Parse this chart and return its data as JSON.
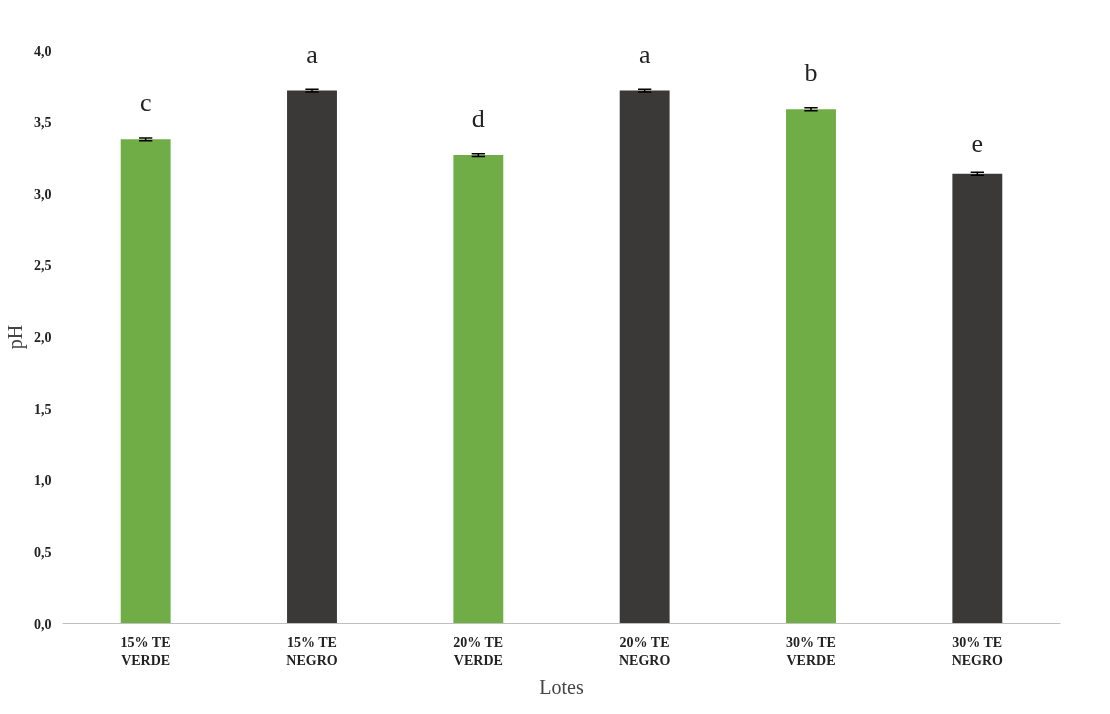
{
  "chart_data": {
    "type": "bar",
    "xlabel": "Lotes",
    "ylabel": "pH",
    "categories": [
      "15% TE\nVERDE",
      "15% TE\nNEGRO",
      "20% TE\nVERDE",
      "20% TE\nNEGRO",
      "30% TE\nVERDE",
      "30% TE\nNEGRO"
    ],
    "values": [
      3.38,
      3.72,
      3.27,
      3.72,
      3.59,
      3.14
    ],
    "errors": [
      0.01,
      0.01,
      0.01,
      0.01,
      0.01,
      0.01
    ],
    "colors": [
      "#70ad47",
      "#3b3838",
      "#70ad47",
      "#3b3838",
      "#70ad47",
      "#3b3838"
    ],
    "ylim": [
      0,
      4
    ],
    "yticks": [
      {
        "value": 0,
        "label": "0,0"
      },
      {
        "value": 0.5,
        "label": "0,5"
      },
      {
        "value": 1,
        "label": "1,0"
      },
      {
        "value": 1.5,
        "label": "1,5"
      },
      {
        "value": 2,
        "label": "2,0"
      },
      {
        "value": 2.5,
        "label": "2,5"
      },
      {
        "value": 3,
        "label": "3,0"
      },
      {
        "value": 3.5,
        "label": "3,5"
      },
      {
        "value": 4,
        "label": "4,0"
      }
    ],
    "grid": false,
    "annotations": [
      "c",
      "a",
      "d",
      "a",
      "b",
      "e"
    ]
  }
}
